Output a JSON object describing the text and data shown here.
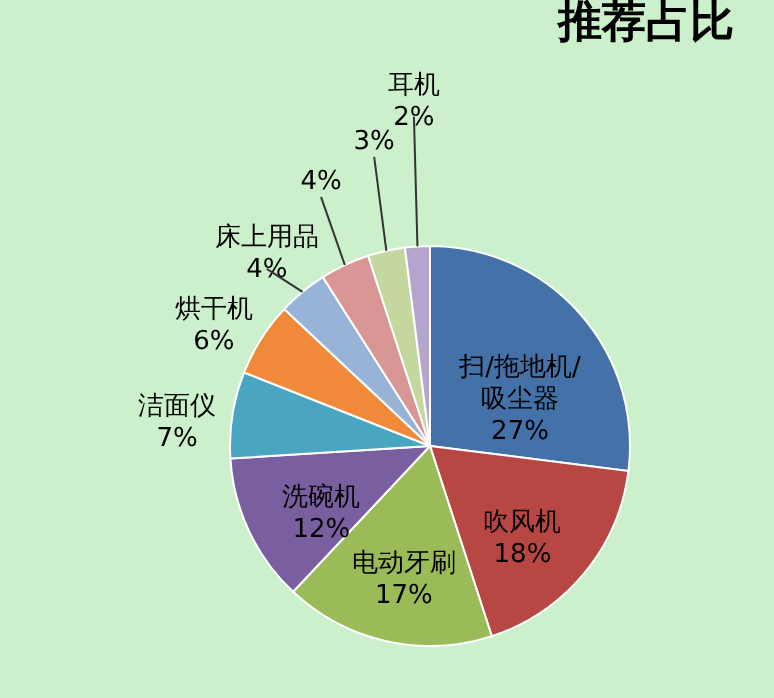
{
  "chart_data": {
    "type": "pie",
    "title": "推荐占比",
    "categories": [
      "扫/拖地机/吸尘器",
      "吹风机",
      "电动牙刷",
      "洗碗机",
      "洁面仪",
      "烘干机",
      "床上用品",
      null,
      null,
      "耳机"
    ],
    "values": [
      27,
      18,
      17,
      12,
      7,
      6,
      4,
      4,
      3,
      2
    ],
    "value_labels": [
      "27%",
      "18%",
      "17%",
      "12%",
      "7%",
      "6%",
      "4%",
      "4%",
      "3%",
      "2%"
    ],
    "colors": [
      "#4472a8",
      "#b84744",
      "#9bbb59",
      "#7a5fa0",
      "#4aa6c0",
      "#f08a3a",
      "#98b3d8",
      "#d89795",
      "#c4d79e",
      "#b3a5cc"
    ]
  }
}
